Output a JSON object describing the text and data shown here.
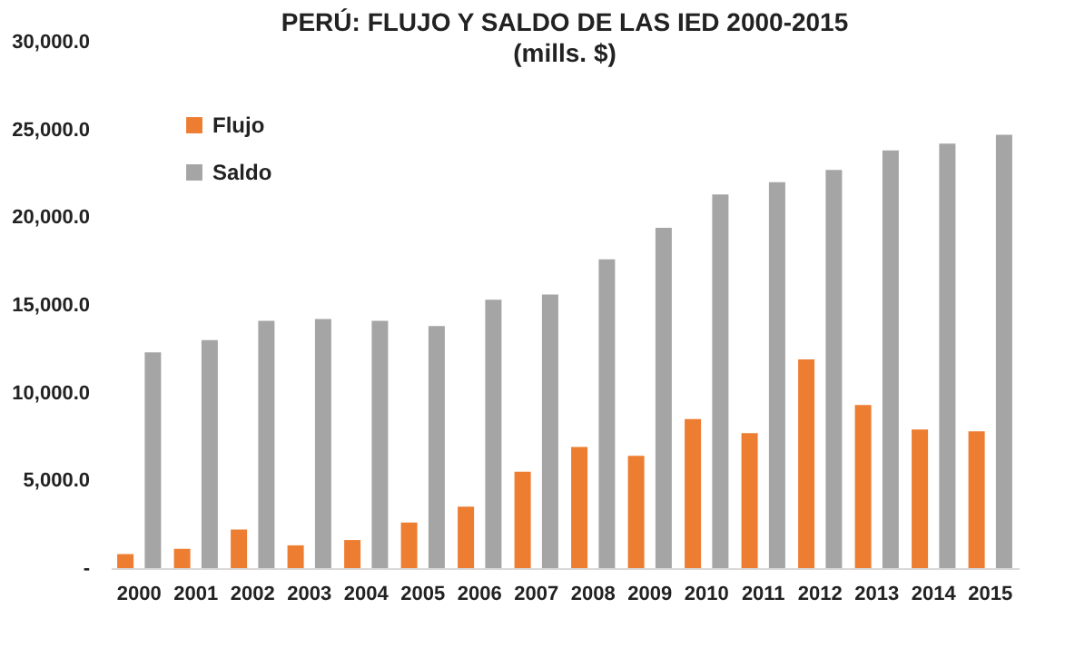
{
  "chart_data": {
    "type": "bar",
    "title": "PERÚ: FLUJO Y SALDO DE LAS IED 2000-2015",
    "subtitle": "(mills. $)",
    "categories": [
      "2000",
      "2001",
      "2002",
      "2003",
      "2004",
      "2005",
      "2006",
      "2007",
      "2008",
      "2009",
      "2010",
      "2011",
      "2012",
      "2013",
      "2014",
      "2015"
    ],
    "series": [
      {
        "name": "Flujo",
        "color": "#ed7d31",
        "values": [
          800,
          1100,
          2200,
          1300,
          1600,
          2600,
          3500,
          5500,
          6900,
          6400,
          8500,
          7700,
          11900,
          9300,
          7900,
          7800
        ]
      },
      {
        "name": "Saldo",
        "color": "#a5a5a5",
        "values": [
          12300,
          13000,
          14100,
          14200,
          14100,
          13800,
          15300,
          15600,
          17600,
          19400,
          21300,
          22000,
          22700,
          23800,
          24200,
          24700
        ]
      }
    ],
    "ylim": [
      0,
      30000
    ],
    "yticks": [
      {
        "value": 0,
        "label": "-"
      },
      {
        "value": 5000,
        "label": "5,000.0"
      },
      {
        "value": 10000,
        "label": "10,000.0"
      },
      {
        "value": 15000,
        "label": "15,000.0"
      },
      {
        "value": 20000,
        "label": "20,000.0"
      },
      {
        "value": 25000,
        "label": "25,000.0"
      },
      {
        "value": 30000,
        "label": "30,000.0"
      }
    ],
    "grid": false,
    "legend": "top left"
  }
}
